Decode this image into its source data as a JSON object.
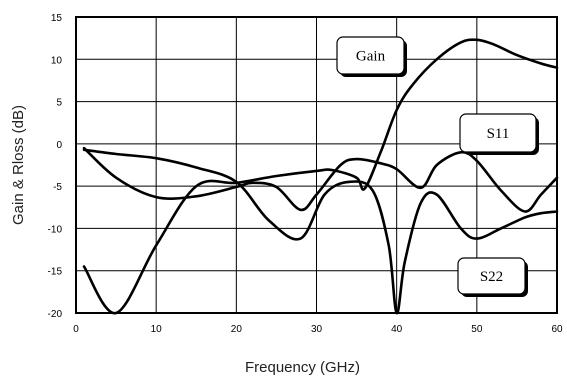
{
  "chart_data": {
    "type": "line",
    "title": "",
    "xlabel": "Frequency (GHz)",
    "ylabel": "Gain & Rloss (dB)",
    "xlim": [
      0,
      60
    ],
    "ylim": [
      -20,
      15
    ],
    "xticks": [
      0,
      10,
      20,
      30,
      40,
      50,
      60
    ],
    "yticks": [
      15,
      10,
      5,
      0,
      -5,
      -10,
      -15,
      -20
    ],
    "grid": true,
    "legend": "callout labels on plot",
    "series": [
      {
        "name": "Gain",
        "color": "#000000",
        "x": [
          1,
          5,
          10,
          15,
          20,
          25,
          30,
          32,
          35,
          36,
          38,
          40,
          42,
          45,
          48,
          50,
          52,
          55,
          58,
          60
        ],
        "y": [
          -14.5,
          -20,
          -12,
          -5,
          -4.6,
          -3.8,
          -3.2,
          -3.1,
          -4,
          -5.3,
          -1,
          4,
          7,
          10,
          12,
          12.3,
          11.8,
          10.5,
          9.5,
          9
        ]
      },
      {
        "name": "S11",
        "color": "#000000",
        "x": [
          1,
          5,
          10,
          15,
          20,
          22,
          25,
          28,
          30,
          33,
          35,
          38,
          40,
          43,
          45,
          48,
          50,
          53,
          56,
          58,
          60
        ],
        "y": [
          -0.5,
          -4,
          -6.3,
          -6.2,
          -5.1,
          -4.6,
          -5.1,
          -7.8,
          -6,
          -2.5,
          -1.8,
          -2.3,
          -3,
          -5.2,
          -2.5,
          -1,
          -2,
          -5.5,
          -8,
          -6,
          -4
        ]
      },
      {
        "name": "S22",
        "color": "#000000",
        "x": [
          1,
          5,
          10,
          15,
          20,
          24,
          28,
          31,
          34,
          37,
          39,
          40,
          41,
          43,
          45,
          48,
          50,
          53,
          56,
          58,
          60
        ],
        "y": [
          -0.7,
          -1.2,
          -1.7,
          -2.8,
          -4.5,
          -9,
          -11.2,
          -6,
          -4.5,
          -5.5,
          -12,
          -20,
          -14,
          -7,
          -6,
          -10,
          -11.2,
          -10,
          -8.7,
          -8.2,
          -8
        ]
      }
    ],
    "callouts": [
      {
        "label": "Gain"
      },
      {
        "label": "S11"
      },
      {
        "label": "S22"
      }
    ]
  }
}
